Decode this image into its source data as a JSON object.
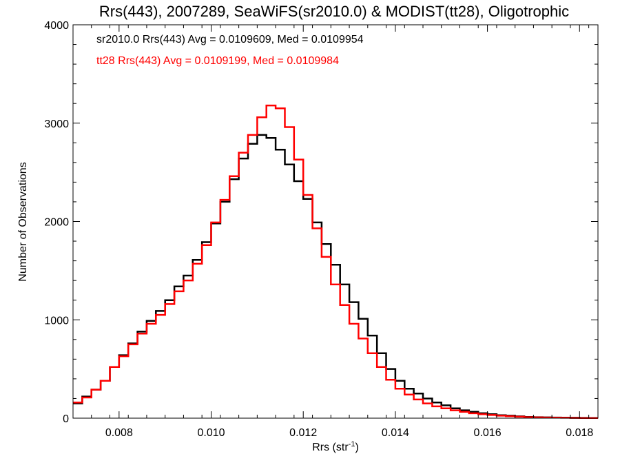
{
  "chart_data": {
    "type": "step",
    "title": "Rrs(443), 2007289, SeaWiFS(sr2010.0) & MODIST(tt28), Oligotrophic",
    "xlabel": "Rrs (str",
    "xlabel_sup": "-1",
    "xlabel_tail": ")",
    "ylabel": "Number of Observations",
    "xlim": [
      0.007,
      0.0184
    ],
    "ylim": [
      0,
      4000
    ],
    "x_ticks": [
      0.008,
      0.01,
      0.012,
      0.014,
      0.016,
      0.018
    ],
    "x_tick_labels": [
      "0.008",
      "0.010",
      "0.012",
      "0.014",
      "0.016",
      "0.018"
    ],
    "y_ticks": [
      0,
      1000,
      2000,
      3000,
      4000
    ],
    "y_tick_labels": [
      "0",
      "1000",
      "2000",
      "3000",
      "4000"
    ],
    "series": [
      {
        "name": "sr2010.0",
        "color": "#000000",
        "annotation": "sr2010.0 Rrs(443) Avg = 0.0109609, Med = 0.0109954",
        "points": [
          [
            0.007,
            150
          ],
          [
            0.0072,
            220
          ],
          [
            0.0074,
            290
          ],
          [
            0.0076,
            380
          ],
          [
            0.0078,
            520
          ],
          [
            0.008,
            640
          ],
          [
            0.0082,
            760
          ],
          [
            0.0084,
            880
          ],
          [
            0.0086,
            990
          ],
          [
            0.0088,
            1090
          ],
          [
            0.009,
            1200
          ],
          [
            0.0092,
            1340
          ],
          [
            0.0094,
            1450
          ],
          [
            0.0096,
            1610
          ],
          [
            0.0098,
            1790
          ],
          [
            0.01,
            1980
          ],
          [
            0.0102,
            2200
          ],
          [
            0.0104,
            2430
          ],
          [
            0.0106,
            2640
          ],
          [
            0.0108,
            2790
          ],
          [
            0.011,
            2880
          ],
          [
            0.0112,
            2850
          ],
          [
            0.0114,
            2730
          ],
          [
            0.0116,
            2580
          ],
          [
            0.0118,
            2410
          ],
          [
            0.012,
            2230
          ],
          [
            0.0122,
            1990
          ],
          [
            0.0124,
            1770
          ],
          [
            0.0126,
            1560
          ],
          [
            0.0128,
            1360
          ],
          [
            0.013,
            1180
          ],
          [
            0.0132,
            1010
          ],
          [
            0.0134,
            840
          ],
          [
            0.0136,
            660
          ],
          [
            0.0138,
            500
          ],
          [
            0.014,
            380
          ],
          [
            0.0142,
            300
          ],
          [
            0.0144,
            250
          ],
          [
            0.0146,
            200
          ],
          [
            0.0148,
            160
          ],
          [
            0.015,
            130
          ],
          [
            0.0152,
            100
          ],
          [
            0.0154,
            80
          ],
          [
            0.0156,
            65
          ],
          [
            0.0158,
            50
          ],
          [
            0.016,
            40
          ],
          [
            0.0162,
            30
          ],
          [
            0.0164,
            25
          ],
          [
            0.0166,
            18
          ],
          [
            0.0168,
            12
          ],
          [
            0.017,
            10
          ],
          [
            0.0172,
            8
          ],
          [
            0.0174,
            6
          ],
          [
            0.0176,
            5
          ],
          [
            0.0178,
            4
          ],
          [
            0.018,
            3
          ],
          [
            0.0182,
            2
          ]
        ]
      },
      {
        "name": "tt28",
        "color": "#ff0000",
        "annotation": "tt28 Rrs(443) Avg = 0.0109199, Med = 0.0109984",
        "points": [
          [
            0.007,
            160
          ],
          [
            0.0072,
            210
          ],
          [
            0.0074,
            290
          ],
          [
            0.0076,
            380
          ],
          [
            0.0078,
            520
          ],
          [
            0.008,
            630
          ],
          [
            0.0082,
            750
          ],
          [
            0.0084,
            860
          ],
          [
            0.0086,
            960
          ],
          [
            0.0088,
            1050
          ],
          [
            0.009,
            1160
          ],
          [
            0.0092,
            1290
          ],
          [
            0.0094,
            1400
          ],
          [
            0.0096,
            1570
          ],
          [
            0.0098,
            1760
          ],
          [
            0.01,
            1990
          ],
          [
            0.0102,
            2220
          ],
          [
            0.0104,
            2460
          ],
          [
            0.0106,
            2700
          ],
          [
            0.0108,
            2880
          ],
          [
            0.011,
            3060
          ],
          [
            0.0112,
            3180
          ],
          [
            0.0114,
            3150
          ],
          [
            0.0116,
            2960
          ],
          [
            0.0118,
            2630
          ],
          [
            0.012,
            2270
          ],
          [
            0.0122,
            1930
          ],
          [
            0.0124,
            1640
          ],
          [
            0.0126,
            1360
          ],
          [
            0.0128,
            1150
          ],
          [
            0.013,
            960
          ],
          [
            0.0132,
            810
          ],
          [
            0.0134,
            660
          ],
          [
            0.0136,
            520
          ],
          [
            0.0138,
            390
          ],
          [
            0.014,
            300
          ],
          [
            0.0142,
            240
          ],
          [
            0.0144,
            190
          ],
          [
            0.0146,
            150
          ],
          [
            0.0148,
            120
          ],
          [
            0.015,
            100
          ],
          [
            0.0152,
            80
          ],
          [
            0.0154,
            65
          ],
          [
            0.0156,
            50
          ],
          [
            0.0158,
            40
          ],
          [
            0.016,
            32
          ],
          [
            0.0162,
            25
          ],
          [
            0.0164,
            20
          ],
          [
            0.0166,
            15
          ],
          [
            0.0168,
            10
          ],
          [
            0.017,
            8
          ],
          [
            0.0172,
            6
          ],
          [
            0.0174,
            5
          ],
          [
            0.0176,
            4
          ],
          [
            0.0178,
            3
          ],
          [
            0.018,
            2
          ],
          [
            0.0182,
            2
          ]
        ]
      }
    ]
  }
}
